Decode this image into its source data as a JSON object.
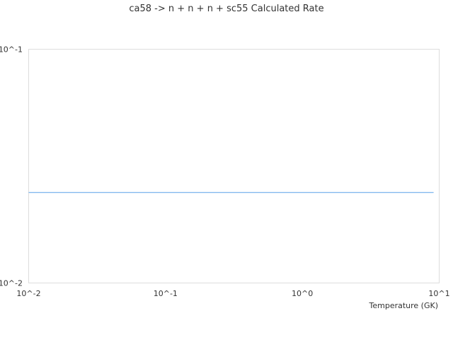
{
  "chart_data": {
    "type": "line",
    "title": "ca58 -> n + n + n + sc55 Calculated Rate",
    "xlabel": "Temperature (GK)",
    "ylabel": "",
    "x_scale": "log",
    "y_scale": "log",
    "xlim": [
      0.01,
      10
    ],
    "ylim": [
      0.01,
      0.1
    ],
    "x_ticks": [
      {
        "value": 0.01,
        "label": "10^-2"
      },
      {
        "value": 0.1,
        "label": "10^-1"
      },
      {
        "value": 1,
        "label": "10^0"
      },
      {
        "value": 10,
        "label": "10^1"
      }
    ],
    "y_ticks": [
      {
        "value": 0.01,
        "label": "10^-2"
      },
      {
        "value": 0.1,
        "label": "10^-1"
      }
    ],
    "grid": false,
    "series": [
      {
        "color": "#5aa0e8",
        "x": [
          0.01,
          0.1,
          1,
          9.1
        ],
        "y": [
          0.0244,
          0.0244,
          0.0244,
          0.0244
        ]
      }
    ]
  }
}
